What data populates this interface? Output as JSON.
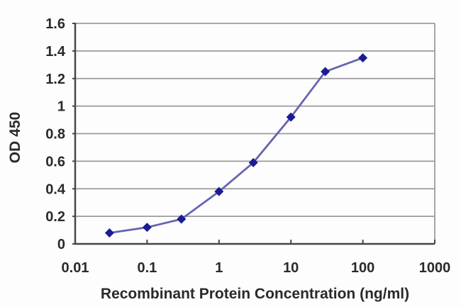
{
  "chart_data": {
    "type": "line",
    "title": "",
    "xlabel": "Recombinant Protein Concentration (ng/ml)",
    "ylabel": "OD 450",
    "x_scale": "log",
    "x": [
      0.03,
      0.1,
      0.3,
      1,
      3,
      10,
      30,
      100
    ],
    "series": [
      {
        "name": "OD 450",
        "values": [
          0.08,
          0.12,
          0.18,
          0.38,
          0.59,
          0.92,
          1.25,
          1.35
        ]
      }
    ],
    "xlim": [
      0.01,
      1000
    ],
    "ylim": [
      0,
      1.6
    ],
    "x_ticks": [
      0.01,
      0.1,
      1,
      10,
      100,
      1000
    ],
    "x_tick_labels": [
      "0.01",
      "0.1",
      "1",
      "10",
      "100",
      "1000"
    ],
    "y_ticks": [
      0,
      0.2,
      0.4,
      0.6,
      0.8,
      1,
      1.2,
      1.4,
      1.6
    ],
    "y_tick_labels": [
      "0",
      "0.2",
      "0.4",
      "0.6",
      "0.8",
      "1",
      "1.2",
      "1.4",
      "1.6"
    ],
    "grid": "horizontal",
    "legend": "none",
    "marker": "diamond",
    "colors": {
      "line": "#6565b0",
      "marker": "#1b1b96",
      "grid": "#9b9b9b",
      "axis": "#474747",
      "text": "#2a2a2a",
      "background": "#fdfdfd"
    }
  }
}
